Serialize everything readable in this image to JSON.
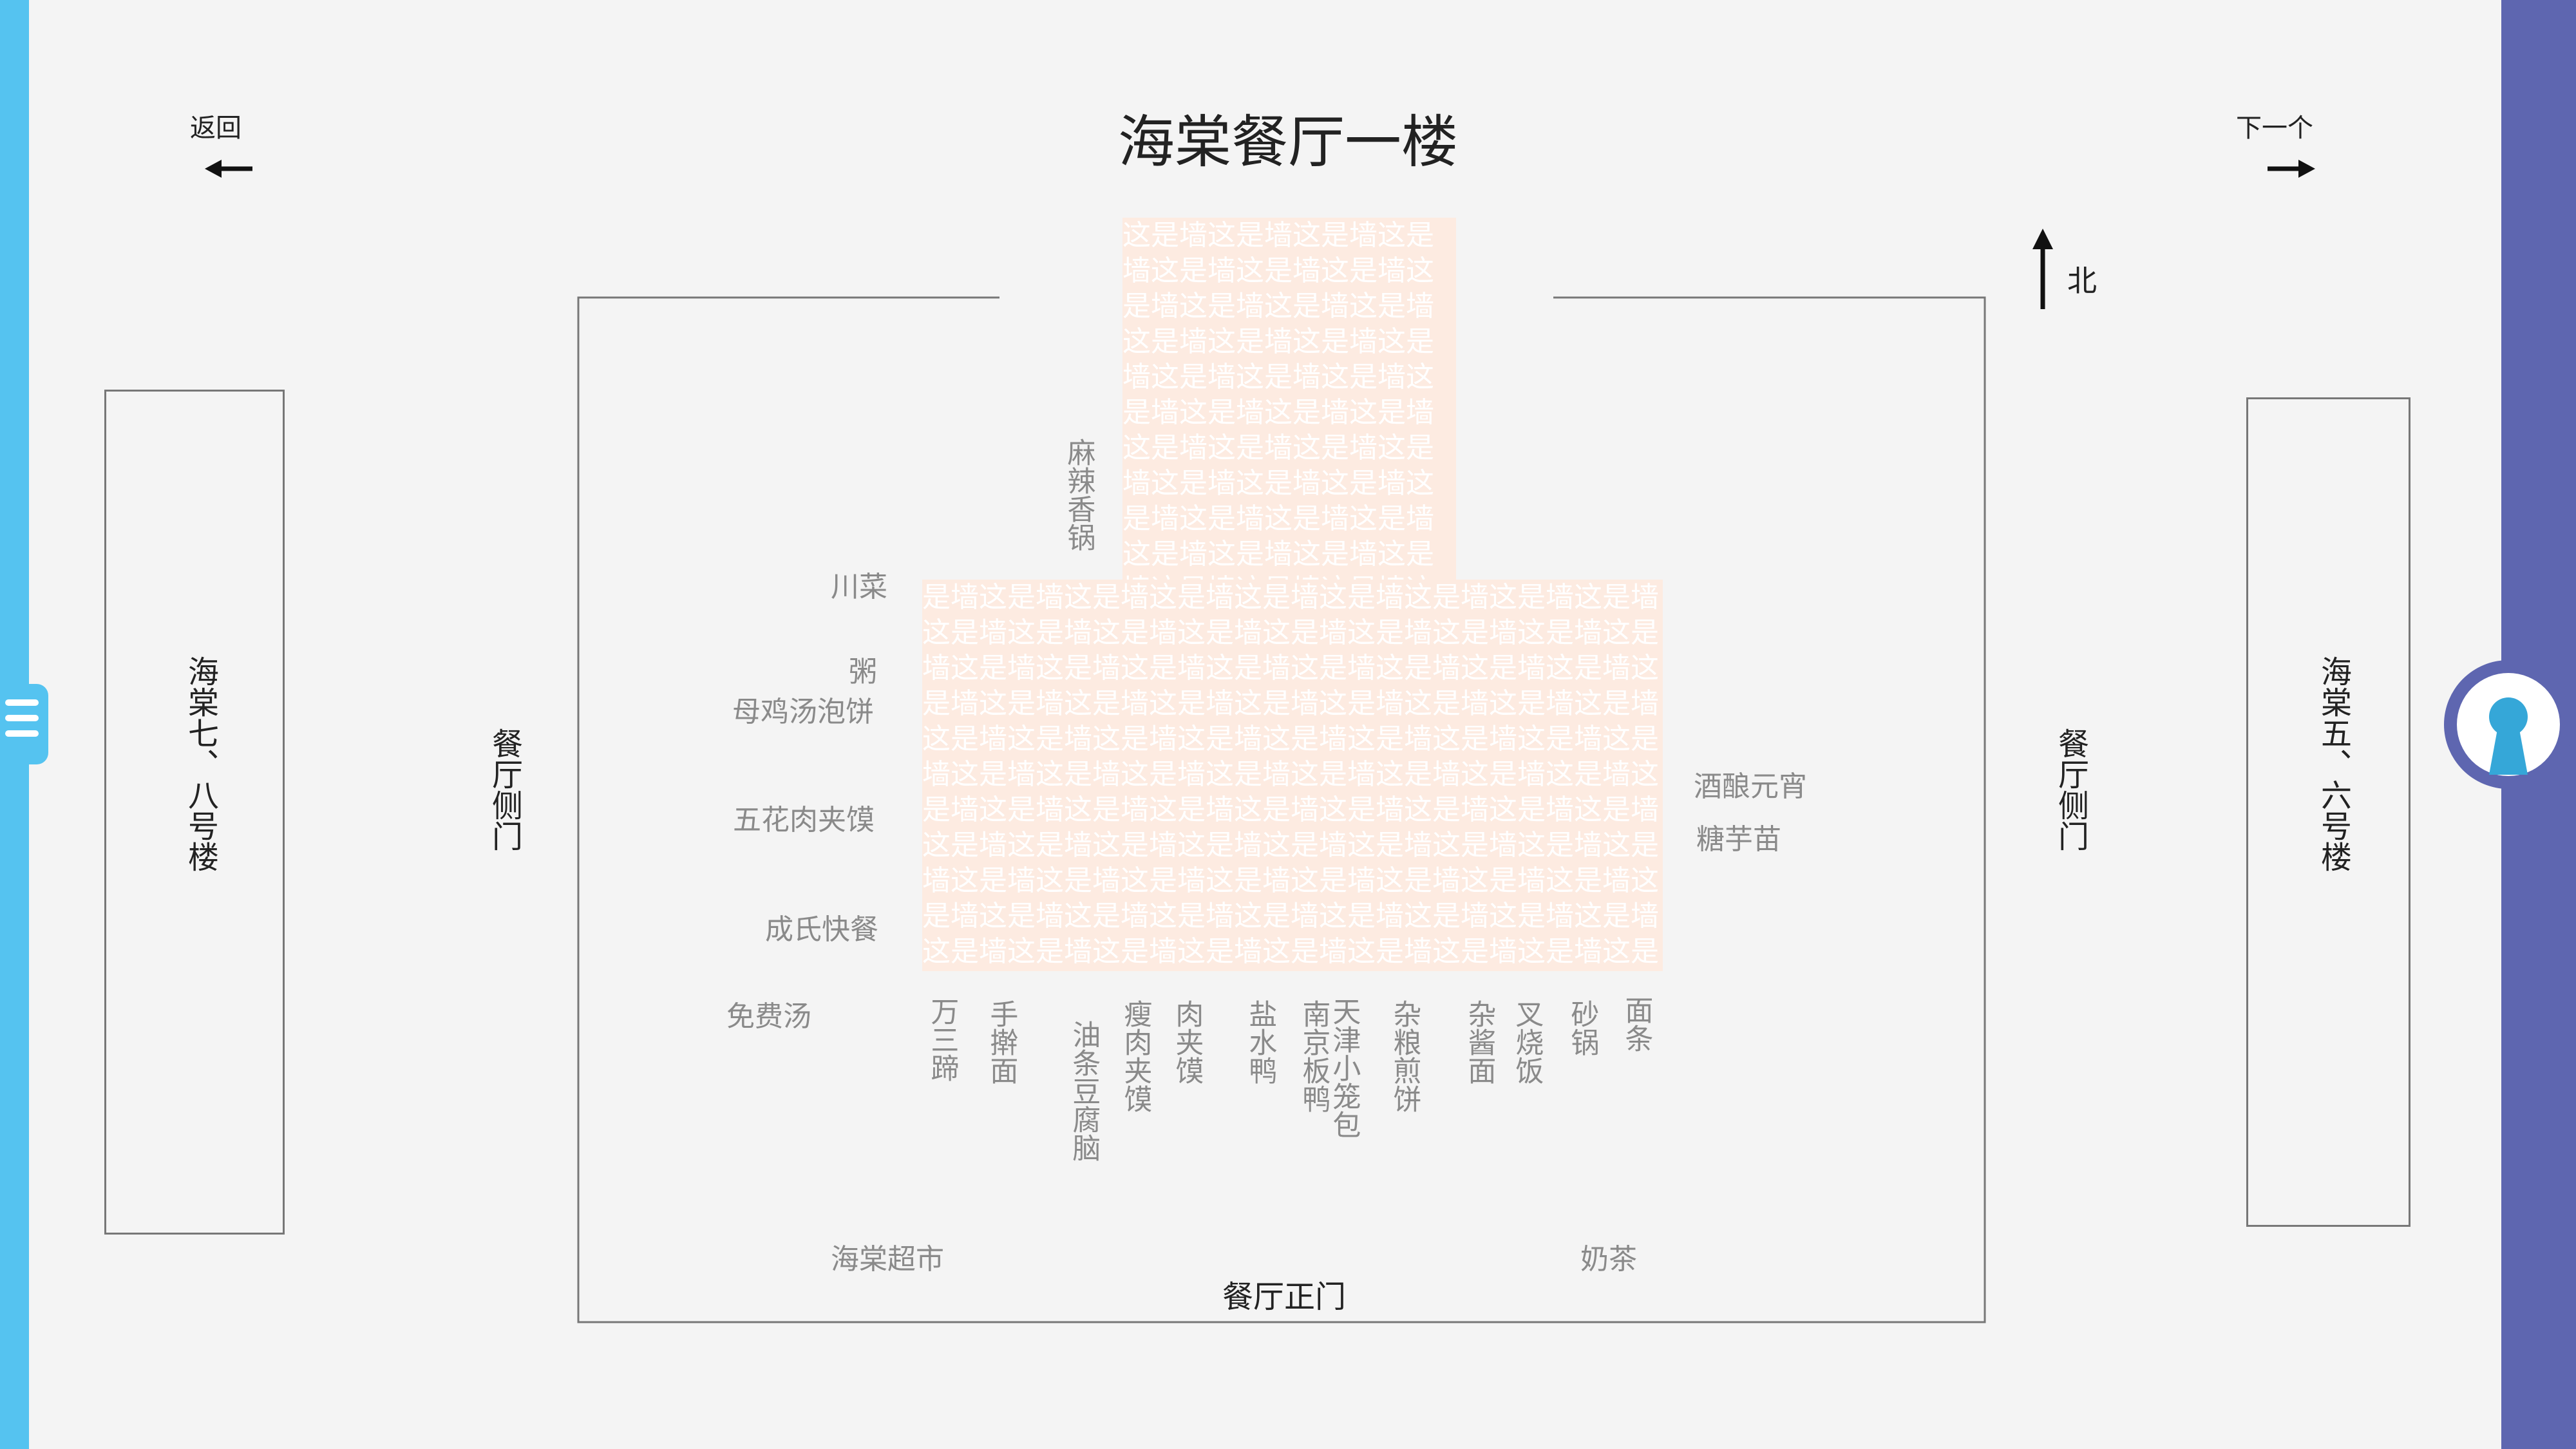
{
  "page": {
    "title": "海棠餐厅一楼",
    "back_label": "返回",
    "next_label": "下一个",
    "north_label": "北",
    "accent_left": "#55c3f0",
    "accent_right": "#5e66b0"
  },
  "buildings": {
    "left": "海棠七、八号楼",
    "right": "海棠五、六号楼"
  },
  "doors": {
    "west_side": "餐厅侧门",
    "east_side": "餐厅侧门",
    "main": "餐厅正门"
  },
  "wall": {
    "top_text": "这是墙这是墙这是墙这是墙这是墙这是墙这是墙这是墙这是墙这是墙这是墙这是墙这是墙这是墙这是墙这是墙这是墙这是墙这是墙这是墙这是墙这是墙这是墙这是墙这是墙这是墙这是墙这是墙这是墙这是墙这是墙这是墙这是墙这是墙这是墙这是墙这是墙这是墙这是墙这是墙这是墙这是墙这是墙这是墙这是墙这是墙这是墙这是墙这是墙这是墙这是墙",
    "main_text": "是墙这是墙这是墙这是墙这是墙这是墙这是墙这是墙这是墙这是墙这是墙这是墙这是墙这是墙这是墙这是墙这是墙这是墙这是墙这是墙这是墙这是墙这是墙这是墙这是墙这是墙这是墙这是墙这是墙这是墙这是墙这是墙这是墙这是墙这是墙这是墙这是墙这是墙这是墙这是墙这是墙这是墙这是墙这是墙这是墙这是墙这是墙这是墙这是墙这是墙这是墙这是墙这是墙这是墙这是墙这是墙这是墙这是墙这是墙这是墙这是墙这是墙这是墙这是墙这是墙这是墙这是墙这是墙这是墙这是墙这是墙这是墙这是墙这是墙这是墙这是墙这是墙这是墙这是墙这是墙这是墙这是墙这是墙这是墙这是墙这是墙这是墙这是墙这是墙这是墙这是墙这是墙这是墙这是墙这是墙这是墙这是墙这是墙这是墙这是墙这是墙这是墙这是墙"
  },
  "stalls": {
    "malaxiangguo": "麻辣香锅",
    "chuancai": "川菜",
    "zhou": "粥",
    "mujitang": "母鸡汤泡饼",
    "wuhuarou": "五花肉夹馍",
    "chengshi": "成氏快餐",
    "mianfeitang": "免费汤",
    "jiuniang": "酒酿元宵",
    "tangyumiao": "糖芋苗",
    "chaoshi": "海棠超市",
    "naicha": "奶茶",
    "wansanti": "万三蹄",
    "shougan": "手擀面",
    "youtiao": "油条豆腐脑",
    "shourou": "瘦肉夹馍",
    "roujiamo": "肉夹馍",
    "yanshuiya": "盐水鸭",
    "nanjing": "南京板鸭",
    "tianjin": "天津小笼包",
    "zaliang": "杂粮煎饼",
    "zajiang": "杂酱面",
    "chashao": "叉烧饭",
    "shaguo": "砂锅",
    "miantiao": "面条"
  }
}
